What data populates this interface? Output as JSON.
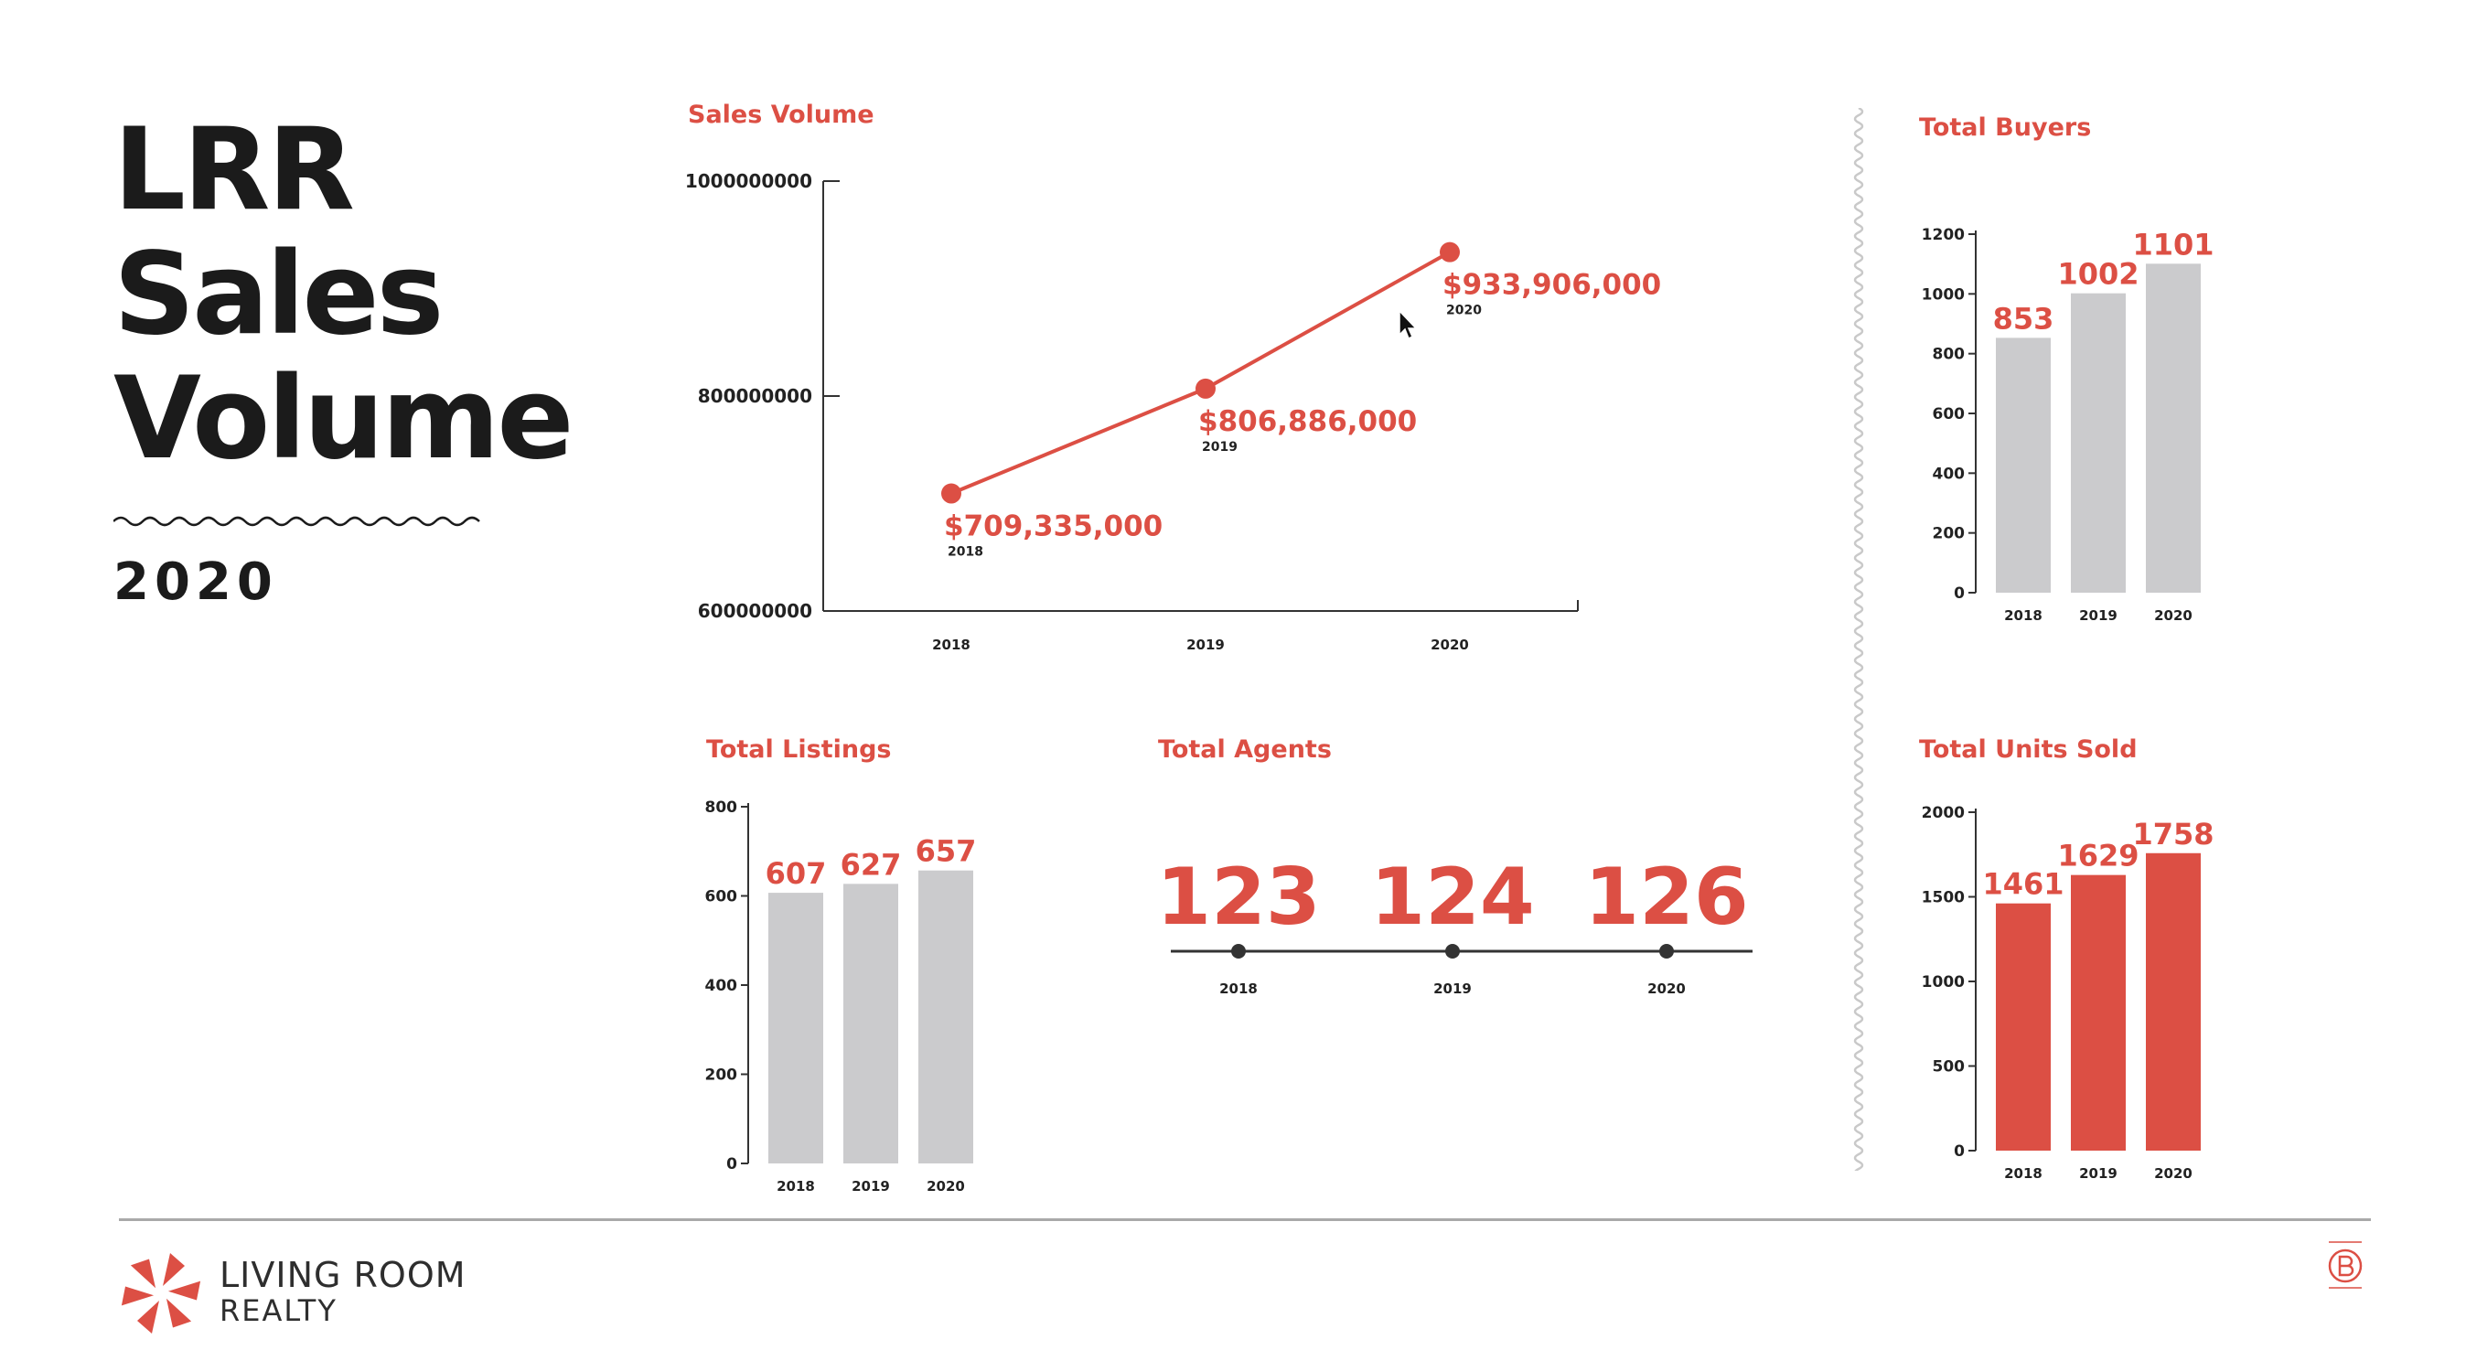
{
  "slide": {
    "title_lines": [
      "LRR",
      "Sales",
      "Volume"
    ],
    "year": "2020"
  },
  "colors": {
    "accent": "#dc4f44",
    "bar_gray": "#cbcbcd",
    "text_dark": "#1b1b1b",
    "axis": "#333333"
  },
  "brand": {
    "name": "LIVING ROOM",
    "sub": "REALTY",
    "logo_icon": "pinwheel-logo-icon",
    "badge_icon": "certified-b-corporation-badge-icon"
  },
  "chart_data": [
    {
      "id": "sales_volume",
      "type": "line",
      "title": "Sales Volume",
      "categories": [
        "2018",
        "2019",
        "2020"
      ],
      "values": [
        709335000,
        806886000,
        933906000
      ],
      "value_labels": [
        "$709,335,000",
        "$806,886,000",
        "$933,906,000"
      ],
      "point_labels": [
        "2018",
        "2019",
        "2020"
      ],
      "ylim": [
        600000000,
        1000000000
      ],
      "yticks": [
        "600000000",
        "800000000",
        "1000000000"
      ],
      "ytick_values": [
        600000000,
        800000000,
        1000000000
      ],
      "grid": false,
      "color": "#dc4f44"
    },
    {
      "id": "total_buyers",
      "type": "bar",
      "title": "Total Buyers",
      "categories": [
        "2018",
        "2019",
        "2020"
      ],
      "values": [
        853,
        1002,
        1101
      ],
      "ylim": [
        0,
        1200
      ],
      "yticks": [
        "0",
        "200",
        "400",
        "600",
        "800",
        "1000",
        "1200"
      ],
      "ytick_values": [
        0,
        200,
        400,
        600,
        800,
        1000,
        1200
      ],
      "color": "#cbcbcd"
    },
    {
      "id": "total_listings",
      "type": "bar",
      "title": "Total Listings",
      "categories": [
        "2018",
        "2019",
        "2020"
      ],
      "values": [
        607,
        627,
        657
      ],
      "ylim": [
        0,
        800
      ],
      "yticks": [
        "0",
        "200",
        "400",
        "600",
        "800"
      ],
      "ytick_values": [
        0,
        200,
        400,
        600,
        800
      ],
      "color": "#cbcbcd"
    },
    {
      "id": "total_agents",
      "type": "timeline",
      "title": "Total Agents",
      "categories": [
        "2018",
        "2019",
        "2020"
      ],
      "values": [
        123,
        124,
        126
      ],
      "color": "#dc4f44"
    },
    {
      "id": "total_units_sold",
      "type": "bar",
      "title": "Total Units Sold",
      "categories": [
        "2018",
        "2019",
        "2020"
      ],
      "values": [
        1461,
        1629,
        1758
      ],
      "ylim": [
        0,
        2000
      ],
      "yticks": [
        "0",
        "500",
        "1000",
        "1500",
        "2000"
      ],
      "ytick_values": [
        0,
        500,
        1000,
        1500,
        2000
      ],
      "color": "#dc4f44"
    }
  ]
}
